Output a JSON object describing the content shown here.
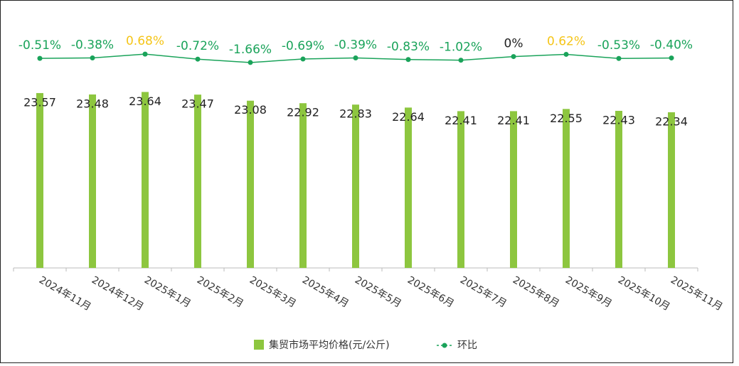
{
  "chart_data": {
    "type": "bar",
    "categories": [
      "2024年11月",
      "2024年12月",
      "2025年1月",
      "2025年2月",
      "2025年3月",
      "2025年4月",
      "2025年5月",
      "2025年6月",
      "2025年7月",
      "2025年8月",
      "2025年9月",
      "2025年10月",
      "2025年11月"
    ],
    "series": [
      {
        "name": "集贸市场平均价格(元/公斤)",
        "color": "#8dc63f",
        "type": "bar",
        "values": [
          23.57,
          23.48,
          23.64,
          23.47,
          23.08,
          22.92,
          22.83,
          22.64,
          22.41,
          22.41,
          22.55,
          22.43,
          22.34
        ]
      },
      {
        "name": "环比",
        "color": "#1aa35a",
        "type": "line",
        "axis": "y2",
        "values": [
          -0.51,
          -0.38,
          0.68,
          -0.72,
          -1.66,
          -0.69,
          -0.39,
          -0.83,
          -1.02,
          0,
          0.62,
          -0.53,
          -0.4
        ],
        "value_labels": [
          "-0.51%",
          "-0.38%",
          "0.68%",
          "-0.72%",
          "-1.66%",
          "-0.69%",
          "-0.39%",
          "-0.83%",
          "-1.02%",
          "0%",
          "0.62%",
          "-0.53%",
          "-0.40%"
        ]
      }
    ],
    "ylim": [
      12.36,
      29.08
    ],
    "y2lim": [
      -59,
      13.8
    ]
  }
}
